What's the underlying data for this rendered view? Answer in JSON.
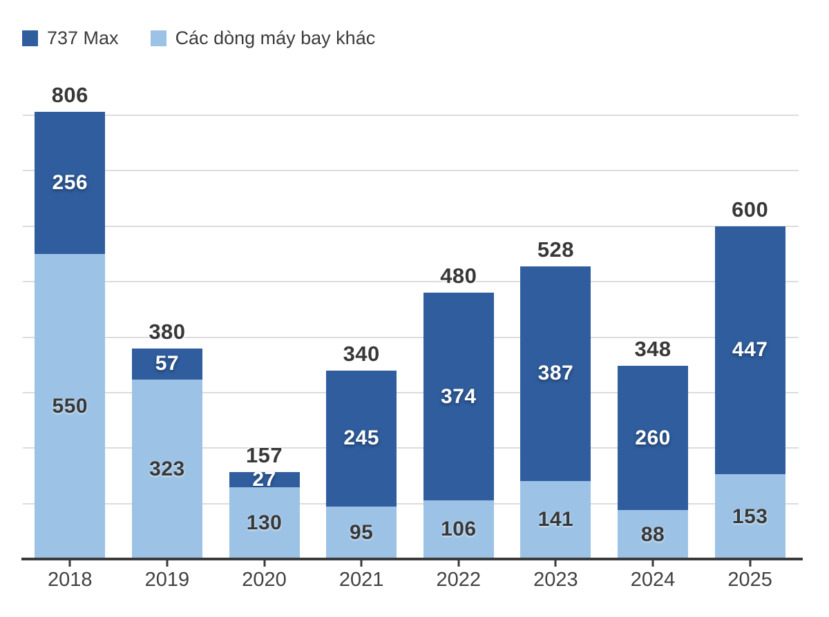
{
  "legend": {
    "items": [
      {
        "label": "737 Max",
        "color": "#2f5d9d"
      },
      {
        "label": "Các dòng máy bay khác",
        "color": "#9cc2e5"
      }
    ]
  },
  "chart_data": {
    "type": "bar",
    "stacked": true,
    "title": "",
    "xlabel": "",
    "ylabel": "",
    "categories": [
      "2018",
      "2019",
      "2020",
      "2021",
      "2022",
      "2023",
      "2024",
      "2025"
    ],
    "series": [
      {
        "name": "737 Max",
        "color": "#2f5d9d",
        "position": "top",
        "values": [
          256,
          57,
          27,
          245,
          374,
          387,
          260,
          447
        ]
      },
      {
        "name": "Các dòng máy bay khác",
        "color": "#9cc2e5",
        "position": "bottom",
        "values": [
          550,
          323,
          130,
          95,
          106,
          141,
          88,
          153
        ]
      }
    ],
    "totals": [
      806,
      380,
      157,
      340,
      480,
      528,
      348,
      600
    ],
    "ylim": [
      0,
      800
    ],
    "gridline_step": 100,
    "grid": true,
    "y_tick_labels_visible": false,
    "legend_position": "top-left"
  },
  "colors": {
    "dark_series": "#2f5d9d",
    "light_series": "#9cc2e5",
    "gridline": "#dcdcdc",
    "axis_line": "#3a3a3a",
    "label_dark": "#383838",
    "label_light": "#ffffff",
    "axis_label": "#414141"
  }
}
